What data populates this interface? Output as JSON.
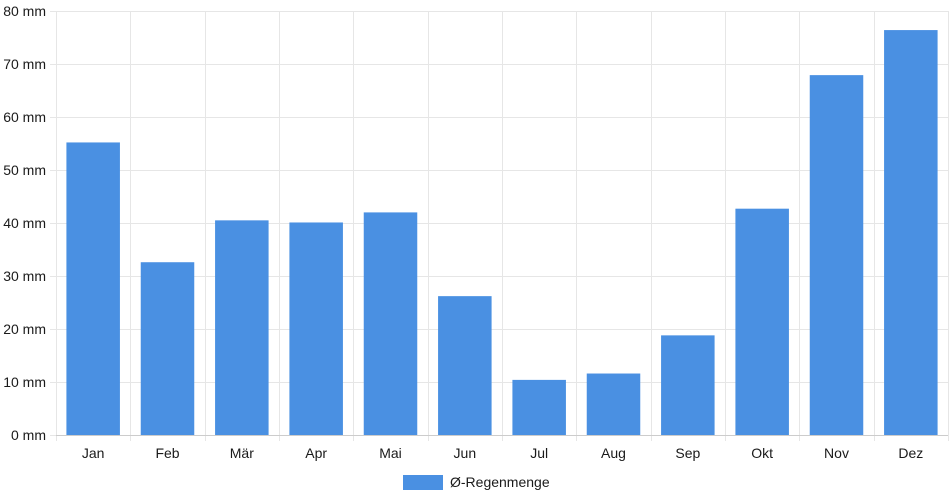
{
  "chart_data": {
    "type": "bar",
    "categories": [
      "Jan",
      "Feb",
      "Mär",
      "Apr",
      "Mai",
      "Jun",
      "Jul",
      "Aug",
      "Sep",
      "Okt",
      "Nov",
      "Dez"
    ],
    "series": [
      {
        "name": "Ø-Regenmenge",
        "color": "#4a90e2",
        "values": [
          55.2,
          32.6,
          40.5,
          40.1,
          42.0,
          26.2,
          10.4,
          11.6,
          18.8,
          42.7,
          67.9,
          76.4
        ]
      }
    ],
    "y_ticks": [
      "0 mm",
      "10 mm",
      "20 mm",
      "30 mm",
      "40 mm",
      "50 mm",
      "60 mm",
      "70 mm",
      "80 mm"
    ],
    "ylim": [
      0,
      80
    ],
    "y_tick_step": 10,
    "grid": true,
    "legend_position": "bottom-center",
    "colors": {
      "grid": "#e6e6e6",
      "axis": "#cccccc",
      "text": "#1a1a1a"
    }
  }
}
